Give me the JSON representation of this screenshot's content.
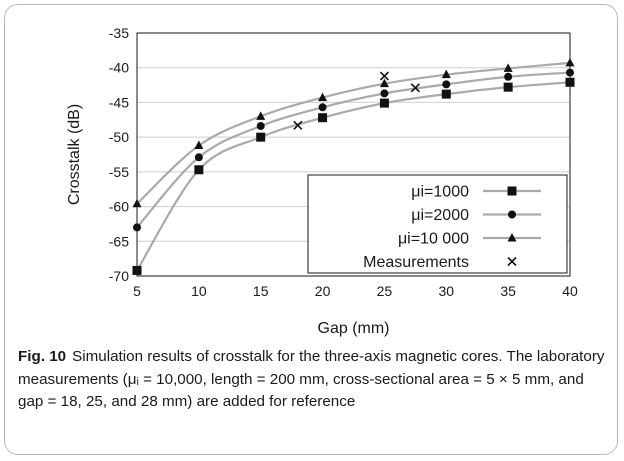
{
  "chart_data": {
    "type": "line",
    "xlabel": "Gap (mm)",
    "ylabel": "Crosstalk (dB)",
    "xlim": [
      5,
      40
    ],
    "ylim": [
      -70,
      -35
    ],
    "xticks": [
      5,
      10,
      15,
      20,
      25,
      30,
      35,
      40
    ],
    "yticks": [
      -35,
      -40,
      -45,
      -50,
      -55,
      -60,
      -65,
      -70
    ],
    "grid": "horizontal",
    "legend_position": "bottom-right",
    "series": [
      {
        "name": "μi=1000",
        "marker": "square",
        "color": "#aaaaaa",
        "x": [
          5,
          10,
          15,
          20,
          25,
          30,
          35,
          40
        ],
        "y": [
          -69.2,
          -54.7,
          -50.0,
          -47.2,
          -45.1,
          -43.8,
          -42.8,
          -42.1
        ]
      },
      {
        "name": "μi=2000",
        "marker": "circle",
        "color": "#aaaaaa",
        "x": [
          5,
          10,
          15,
          20,
          25,
          30,
          35,
          40
        ],
        "y": [
          -63.0,
          -52.9,
          -48.4,
          -45.7,
          -43.7,
          -42.4,
          -41.3,
          -40.7
        ]
      },
      {
        "name": "μi=10 000",
        "marker": "triangle",
        "color": "#aaaaaa",
        "x": [
          5,
          10,
          15,
          20,
          25,
          30,
          35,
          40
        ],
        "y": [
          -59.6,
          -51.2,
          -47.0,
          -44.3,
          -42.3,
          -41.0,
          -40.1,
          -39.3
        ]
      },
      {
        "name": "Measurements",
        "marker": "cross",
        "color": "#1a1a1a",
        "line": false,
        "x": [
          18,
          25,
          27.5
        ],
        "y": [
          -48.3,
          -41.2,
          -42.9
        ]
      }
    ]
  },
  "caption": {
    "label": "Fig. 10",
    "text": "Simulation results of crosstalk for the three-axis magnetic cores. The laboratory measurements (μᵢ = 10,000, length = 200 mm, cross-sectional area = 5 × 5 mm, and gap = 18, 25, and 28 mm) are added for reference"
  }
}
